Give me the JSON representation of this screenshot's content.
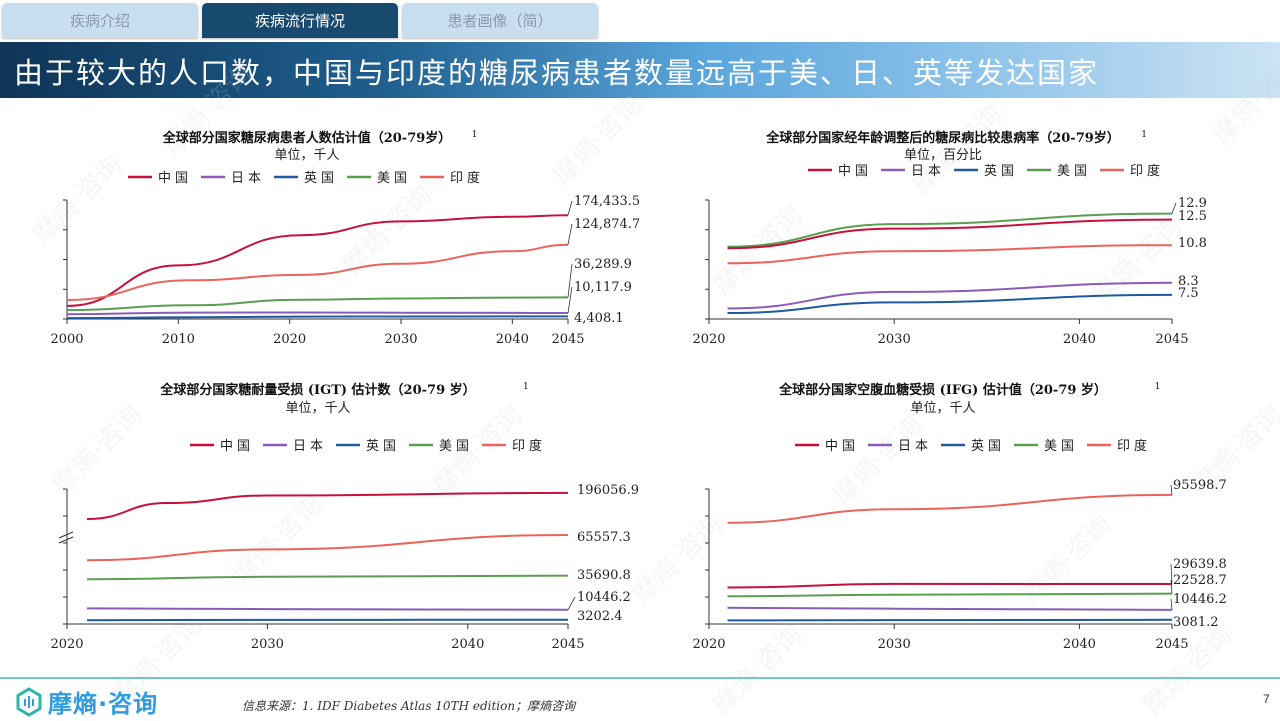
{
  "tabs": [
    {
      "label": "疾病介绍",
      "active": false
    },
    {
      "label": "疾病流行情况",
      "active": true
    },
    {
      "label": "患者画像（简）",
      "active": false
    }
  ],
  "banner": {
    "title": "由于较大的人口数，中国与印度的糖尿病患者数量远高于美、日、英等发达国家"
  },
  "legend": [
    {
      "name": "中国",
      "color": "#c8103c"
    },
    {
      "name": "日本",
      "color": "#8a5cb8"
    },
    {
      "name": "英国",
      "color": "#1f5aa0"
    },
    {
      "name": "美国",
      "color": "#5a9e50"
    },
    {
      "name": "印度",
      "color": "#e8645c"
    }
  ],
  "chart_data": [
    {
      "type": "line",
      "title": "全球部分国家糖尿病患者人数估计值（20-79岁）",
      "superscript": "1",
      "subtitle": "单位，千人",
      "xlabel": "",
      "ylabel": "",
      "x": [
        2000,
        2010,
        2021,
        2030,
        2040,
        2045
      ],
      "xticks": [
        "2000",
        "2010",
        "2020",
        "2030",
        "2040",
        "2045"
      ],
      "xtick_values": [
        2000,
        2010,
        2020,
        2030,
        2040,
        2045
      ],
      "xlim": [
        2000,
        2045
      ],
      "ylim": [
        0,
        200000
      ],
      "y_ticks_count": 4,
      "series": [
        {
          "name": "中国",
          "x": [
            2000,
            2010,
            2021,
            2030,
            2040,
            2045
          ],
          "values": [
            22000,
            90000,
            140900,
            164000,
            172000,
            174433.5
          ],
          "label": "174,433.5"
        },
        {
          "name": "印度",
          "x": [
            2000,
            2011,
            2021,
            2030,
            2040,
            2045
          ],
          "values": [
            32000,
            65000,
            74200,
            93000,
            114000,
            124874.7
          ],
          "label": "124,874.7"
        },
        {
          "name": "美国",
          "x": [
            2000,
            2011,
            2021,
            2030,
            2040,
            2045
          ],
          "values": [
            15000,
            23000,
            32200,
            34500,
            36000,
            36289.9
          ],
          "label": "36,289.9"
        },
        {
          "name": "日本",
          "x": [
            2000,
            2011,
            2021,
            2030,
            2040,
            2045
          ],
          "values": [
            8000,
            10700,
            11000,
            10600,
            10300,
            10117.9
          ],
          "label": "10,117.9"
        },
        {
          "name": "英国",
          "x": [
            2000,
            2011,
            2021,
            2030,
            2040,
            2045
          ],
          "values": [
            1500,
            2800,
            4000,
            4200,
            4350,
            4408.1
          ],
          "label": "4,408.1"
        }
      ]
    },
    {
      "type": "line",
      "title": "全球部分国家经年龄调整后的糖尿病比较患病率（20-79岁）",
      "superscript": "1",
      "subtitle": "单位，百分比",
      "xlabel": "",
      "ylabel": "",
      "x": [
        2021,
        2030,
        2045
      ],
      "xticks": [
        "2020",
        "2030",
        "2040",
        "2045"
      ],
      "xtick_values": [
        2020,
        2030,
        2040,
        2045
      ],
      "xlim": [
        2020,
        2045
      ],
      "ylim": [
        5.9,
        13.8
      ],
      "y_ticks_count": 4,
      "series": [
        {
          "name": "美国",
          "x": [
            2021,
            2030,
            2045
          ],
          "values": [
            10.7,
            12.2,
            12.9
          ],
          "label": "12.9"
        },
        {
          "name": "中国",
          "x": [
            2021,
            2030,
            2045
          ],
          "values": [
            10.6,
            11.9,
            12.5
          ],
          "label": "12.5"
        },
        {
          "name": "印度",
          "x": [
            2021,
            2030,
            2045
          ],
          "values": [
            9.6,
            10.4,
            10.8
          ],
          "label": "10.8"
        },
        {
          "name": "日本",
          "x": [
            2021,
            2030,
            2045
          ],
          "values": [
            6.6,
            7.7,
            8.3
          ],
          "label": "8.3"
        },
        {
          "name": "英国",
          "x": [
            2021,
            2030,
            2045
          ],
          "values": [
            6.3,
            7.0,
            7.5
          ],
          "label": "7.5"
        }
      ]
    },
    {
      "type": "line",
      "title": "全球部分国家糖耐量受损 (IGT) 估计数（20-79 岁）",
      "superscript": "1",
      "subtitle": "单位，千人",
      "xlabel": "",
      "ylabel": "",
      "x": [
        2021,
        2030,
        2045
      ],
      "xticks": [
        "2020",
        "2030",
        "2040",
        "2045"
      ],
      "xtick_values": [
        2020,
        2030,
        2040,
        2045
      ],
      "xlim": [
        2020,
        2045
      ],
      "axis_break": true,
      "y_ticks_count": 5,
      "series": [
        {
          "name": "中国",
          "x": [
            2021,
            2025,
            2030,
            2045
          ],
          "values": [
            170000,
            186000,
            193500,
            196056.9
          ],
          "label": "196056.9"
        },
        {
          "name": "印度",
          "x": [
            2021,
            2030,
            2045
          ],
          "values": [
            47000,
            55000,
            65557.3
          ],
          "label": "65557.3"
        },
        {
          "name": "美国",
          "x": [
            2021,
            2030,
            2045
          ],
          "values": [
            33000,
            34800,
            35690.8
          ],
          "label": "35690.8"
        },
        {
          "name": "日本",
          "x": [
            2021,
            2030,
            2045
          ],
          "values": [
            11500,
            11000,
            10446.2
          ],
          "label": "10446.2"
        },
        {
          "name": "英国",
          "x": [
            2021,
            2030,
            2045
          ],
          "values": [
            2800,
            3000,
            3202.4
          ],
          "label": "3202.4"
        }
      ]
    },
    {
      "type": "line",
      "title": "全球部分国家空腹血糖受损 (IFG) 估计值（20-79 岁）",
      "superscript": "1",
      "subtitle": "单位，千人",
      "xlabel": "",
      "ylabel": "",
      "x": [
        2021,
        2030,
        2045
      ],
      "xticks": [
        "2020",
        "2030",
        "2040",
        "2045"
      ],
      "xtick_values": [
        2020,
        2030,
        2040,
        2045
      ],
      "xlim": [
        2020,
        2045
      ],
      "ylim": [
        0,
        100000
      ],
      "y_ticks_count": 5,
      "series": [
        {
          "name": "印度",
          "x": [
            2021,
            2030,
            2045
          ],
          "values": [
            75000,
            85000,
            95598.7
          ],
          "label": "95598.7"
        },
        {
          "name": "中国",
          "x": [
            2021,
            2030,
            2045
          ],
          "values": [
            27000,
            29700,
            29639.8
          ],
          "label": "29639.8"
        },
        {
          "name": "美国",
          "x": [
            2021,
            2030,
            2045
          ],
          "values": [
            20500,
            21600,
            22528.7
          ],
          "label": "22528.7"
        },
        {
          "name": "日本",
          "x": [
            2021,
            2030,
            2045
          ],
          "values": [
            12000,
            11300,
            10446.2
          ],
          "label": "10446.2"
        },
        {
          "name": "英国",
          "x": [
            2021,
            2030,
            2045
          ],
          "values": [
            2700,
            2900,
            3081.2
          ],
          "label": "3081.2"
        }
      ]
    }
  ],
  "footer": {
    "logo_text": "摩熵·咨询",
    "source": "信息来源：1. IDF Diabetes Atlas 10TH edition；摩熵咨询",
    "page_number": "7"
  },
  "watermark_text": "摩熵·咨询"
}
